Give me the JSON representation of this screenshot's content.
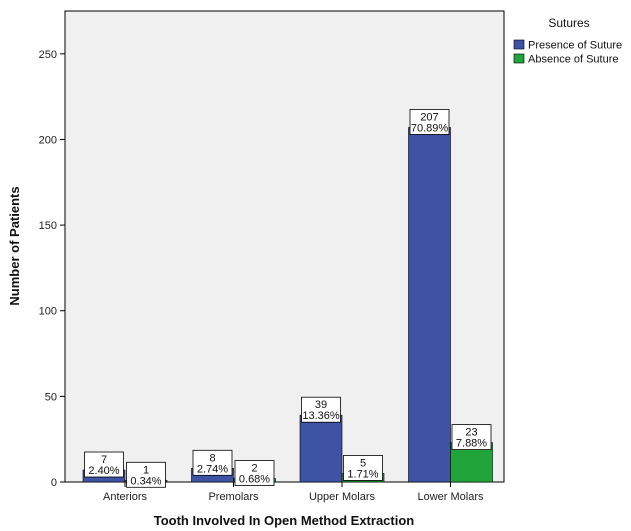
{
  "chart_data": {
    "type": "bar",
    "xlabel": "Tooth Involved In Open Method Extraction",
    "ylabel": "Number of Patients",
    "ylim": [
      0,
      275
    ],
    "yticks": [
      "0",
      "50",
      "100",
      "150",
      "200",
      "250"
    ],
    "grid": false,
    "legend_position": "top-right",
    "legend_title": "Sutures",
    "categories": [
      "Anteriors",
      "Premolars",
      "Upper Molars",
      "Lower Molars"
    ],
    "series": [
      {
        "name": "Presence of Suture",
        "color": "#3e53a4",
        "values": [
          7,
          8,
          39,
          207
        ],
        "labels": [
          [
            "7",
            "2.40%"
          ],
          [
            "8",
            "2.74%"
          ],
          [
            "39",
            "13.36%"
          ],
          [
            "207",
            "70.89%"
          ]
        ]
      },
      {
        "name": "Absence of Suture",
        "color": "#21a43a",
        "values": [
          1,
          2,
          5,
          23
        ],
        "labels": [
          [
            "1",
            "0.34%"
          ],
          [
            "2",
            "0.68%"
          ],
          [
            "5",
            "1.71%"
          ],
          [
            "23",
            "7.88%"
          ]
        ]
      }
    ]
  }
}
